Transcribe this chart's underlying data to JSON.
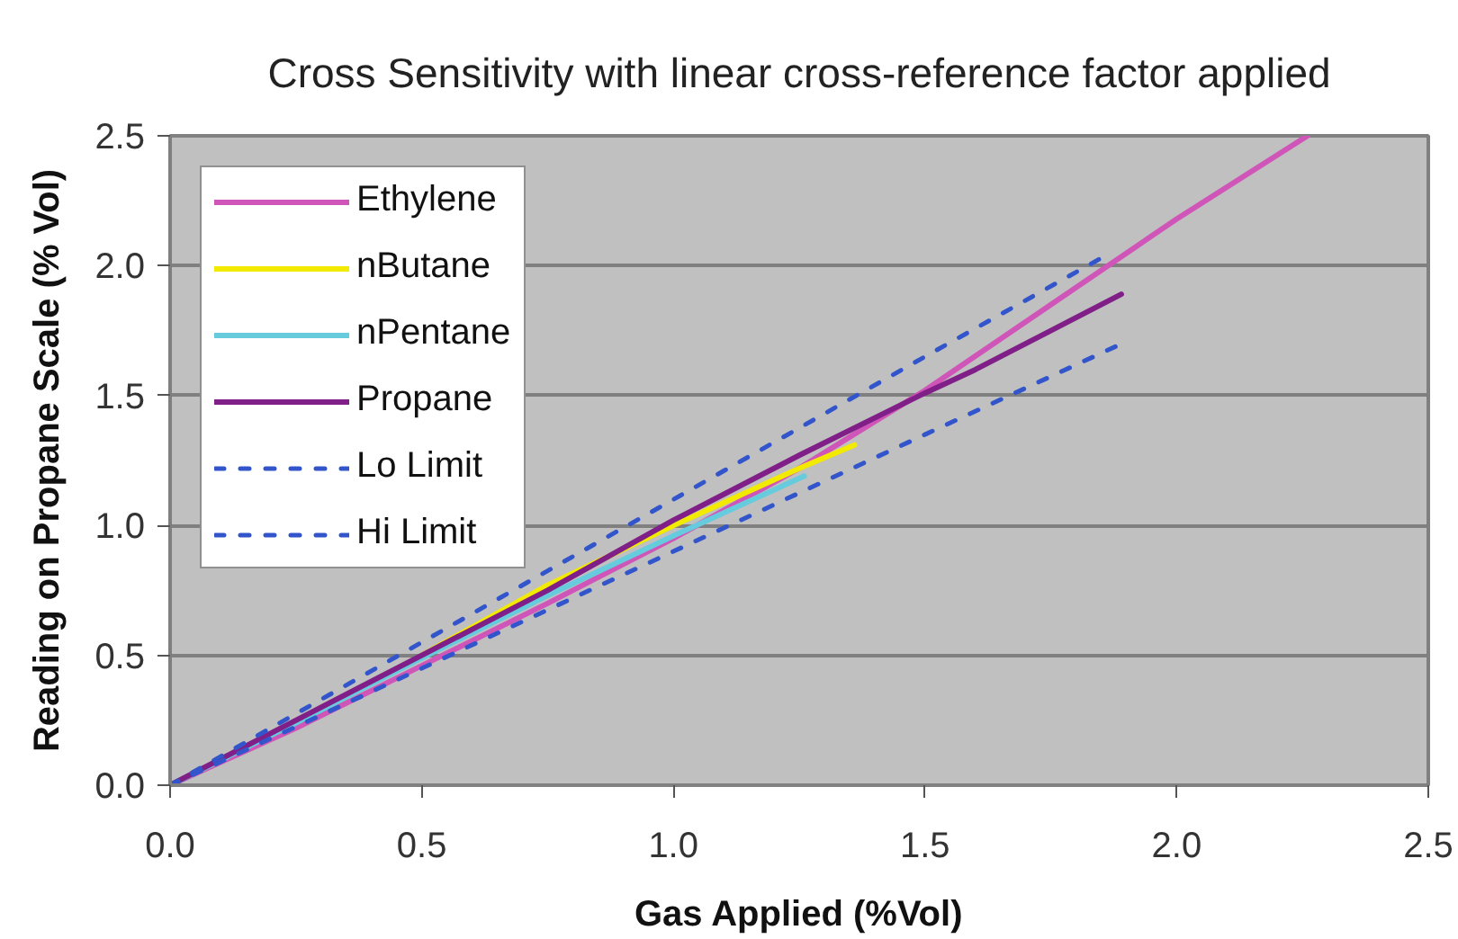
{
  "chart_data": {
    "type": "line",
    "title": "Cross Sensitivity with linear cross-reference factor applied",
    "xlabel": "Gas Applied (%Vol)",
    "ylabel": "Reading on Propane Scale (% Vol)",
    "xlim": [
      0,
      2.5
    ],
    "ylim": [
      0,
      2.5
    ],
    "xticks": [
      {
        "value": 0,
        "label": "0.0"
      },
      0.5,
      {
        "value": 1,
        "label": "1.0"
      },
      1.5,
      {
        "value": 2,
        "label": "2.0"
      },
      2.5
    ],
    "yticks": [
      {
        "value": 0,
        "label": "0.0"
      },
      0.5,
      {
        "value": 1,
        "label": "1.0"
      },
      1.5,
      {
        "value": 2,
        "label": "2.0"
      },
      2.5
    ],
    "grid": "y",
    "legend": "top left",
    "series": [
      {
        "name": "Ethylene",
        "color": "#d055b8",
        "x": [
          0,
          0.25,
          0.5,
          0.75,
          1.0,
          1.25,
          1.5,
          1.75,
          2.0,
          2.26
        ],
        "values": [
          0,
          0.22,
          0.46,
          0.7,
          0.95,
          1.22,
          1.52,
          1.85,
          2.18,
          2.5
        ]
      },
      {
        "name": "nButane",
        "color": "#f2ea00",
        "x": [
          0.5,
          0.75,
          1.0,
          1.25,
          1.36
        ],
        "values": [
          0.5,
          0.77,
          1.0,
          1.22,
          1.31
        ]
      },
      {
        "name": "nPentane",
        "color": "#66ccdd",
        "x": [
          0,
          0.25,
          0.5,
          0.75,
          1.0,
          1.26
        ],
        "values": [
          0,
          0.24,
          0.49,
          0.73,
          0.96,
          1.19
        ]
      },
      {
        "name": "Propane",
        "color": "#801f88",
        "x": [
          0,
          0.25,
          0.5,
          0.75,
          1.0,
          1.25,
          1.5,
          1.6,
          1.75,
          1.89
        ],
        "values": [
          0,
          0.25,
          0.5,
          0.75,
          1.02,
          1.27,
          1.51,
          1.6,
          1.75,
          1.89
        ]
      },
      {
        "name": "Lo Limit",
        "color": "#3355cc",
        "line_style": "dashed",
        "x": [
          0,
          0.5,
          1.0,
          1.5,
          1.88
        ],
        "values": [
          0,
          0.45,
          0.9,
          1.35,
          1.69
        ]
      },
      {
        "name": "Hi Limit",
        "color": "#3355cc",
        "line_style": "dashed",
        "x": [
          0,
          0.5,
          1.0,
          1.5,
          1.86
        ],
        "values": [
          0,
          0.55,
          1.1,
          1.65,
          2.04
        ]
      }
    ]
  }
}
